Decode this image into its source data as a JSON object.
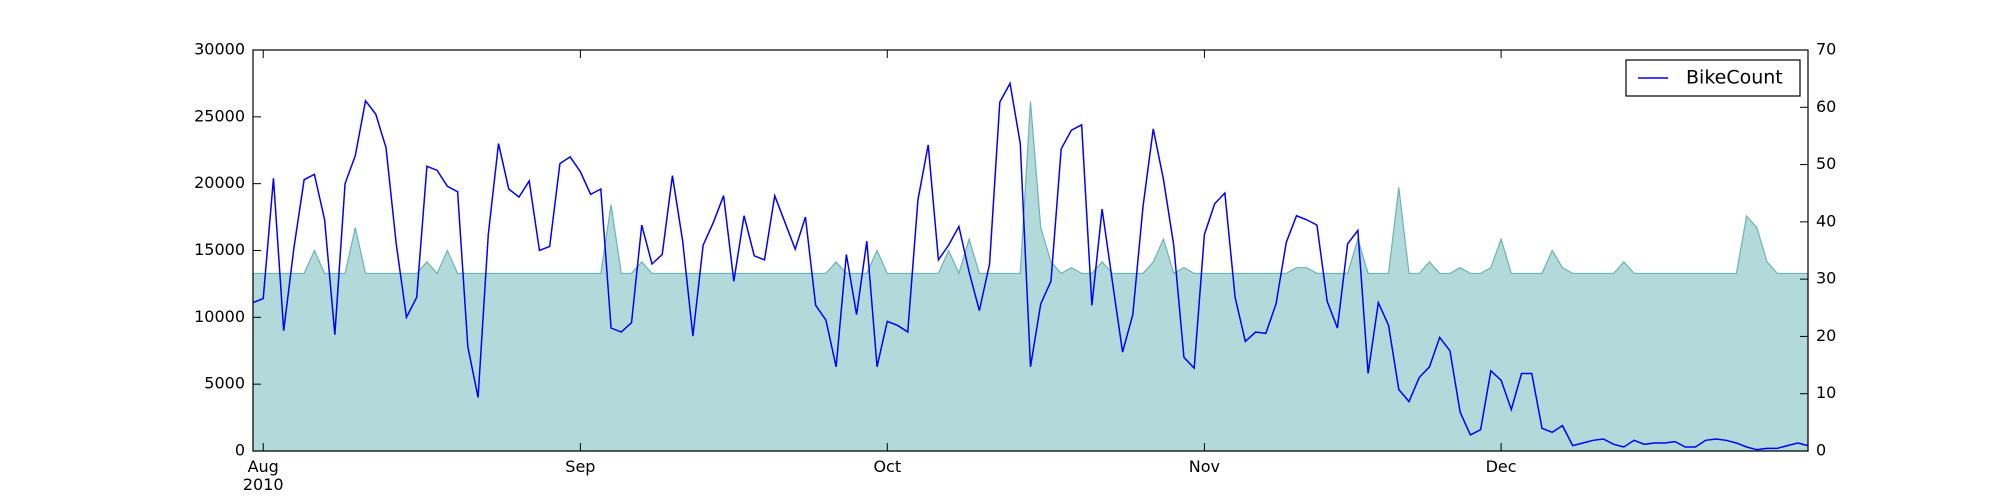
{
  "chart_data": {
    "type": "line_area",
    "x": [
      0,
      1,
      2,
      3,
      4,
      5,
      6,
      7,
      8,
      9,
      10,
      11,
      12,
      13,
      14,
      15,
      16,
      17,
      18,
      19,
      20,
      21,
      22,
      23,
      24,
      25,
      26,
      27,
      28,
      29,
      30,
      31,
      32,
      33,
      34,
      35,
      36,
      37,
      38,
      39,
      40,
      41,
      42,
      43,
      44,
      45,
      46,
      47,
      48,
      49,
      50,
      51,
      52,
      53,
      54,
      55,
      56,
      57,
      58,
      59,
      60,
      61,
      62,
      63,
      64,
      65,
      66,
      67,
      68,
      69,
      70,
      71,
      72,
      73,
      74,
      75,
      76,
      77,
      78,
      79,
      80,
      81,
      82,
      83,
      84,
      85,
      86,
      87,
      88,
      89,
      90,
      91,
      92,
      93,
      94,
      95,
      96,
      97,
      98,
      99,
      100,
      101,
      102,
      103,
      104,
      105,
      106,
      107,
      108,
      109,
      110,
      111,
      112,
      113,
      114,
      115,
      116,
      117,
      118,
      119,
      120,
      121,
      122,
      123,
      124,
      125,
      126,
      127,
      128,
      129,
      130,
      131,
      132,
      133,
      134,
      135,
      136,
      137,
      138,
      139,
      140,
      141,
      142,
      143,
      144,
      145,
      146,
      147,
      148,
      149,
      150,
      151,
      152
    ],
    "series": [
      {
        "name": "BikeCount",
        "color": "#0000ff",
        "kind": "line",
        "axis": "y",
        "values": [
          11100,
          11400,
          20400,
          9000,
          15200,
          20300,
          20700,
          17300,
          8700,
          20000,
          22100,
          26200,
          25200,
          22700,
          15500,
          10000,
          11500,
          21300,
          21000,
          19800,
          19400,
          7800,
          4000,
          16200,
          23000,
          19600,
          19000,
          20200,
          15000,
          15300,
          21500,
          22000,
          20900,
          19200,
          19600,
          9200,
          8900,
          9600,
          16900,
          14000,
          14700,
          20600,
          15700,
          8600,
          15400,
          17100,
          19100,
          12700,
          17600,
          14600,
          14300,
          19100,
          17100,
          15100,
          17500,
          10900,
          9800,
          6300,
          14700,
          10200,
          15700,
          6300,
          9700,
          9400,
          8900,
          18800,
          22900,
          14300,
          15400,
          16800,
          13400,
          10500,
          14000,
          26100,
          27500,
          23000,
          6300,
          11000,
          12700,
          22600,
          24000,
          24400,
          10900,
          18100,
          12700,
          7400,
          10200,
          18300,
          24100,
          20300,
          15400,
          7000,
          6200,
          16200,
          18500,
          19300,
          11500,
          8200,
          8900,
          8800,
          11000,
          15600,
          17600,
          17300,
          16900,
          11200,
          9200,
          15500,
          16500,
          5800,
          11100,
          9400,
          4600,
          3700,
          5500,
          6300,
          8500,
          7500,
          2900,
          1200,
          1600,
          6000,
          5300,
          3100,
          5800,
          5800,
          1700,
          1400,
          1900,
          400,
          600,
          800,
          900,
          500,
          300,
          800,
          500,
          600,
          600,
          700,
          300,
          300,
          800,
          900,
          800,
          600,
          300,
          100,
          200,
          200,
          400,
          600,
          400
        ]
      },
      {
        "color": "#b2dada",
        "edge_color": "#6db3b3",
        "kind": "area",
        "axis": "y2",
        "values": [
          31,
          31,
          31,
          31,
          31,
          31,
          35,
          31,
          31,
          31,
          39,
          31,
          31,
          31,
          31,
          31,
          31,
          33,
          31,
          35,
          31,
          31,
          31,
          31,
          31,
          31,
          31,
          31,
          31,
          31,
          31,
          31,
          31,
          31,
          31,
          43,
          31,
          31,
          33,
          31,
          31,
          31,
          31,
          31,
          31,
          31,
          31,
          31,
          31,
          31,
          31,
          31,
          31,
          31,
          31,
          31,
          31,
          33,
          31,
          31,
          31,
          35,
          31,
          31,
          31,
          31,
          31,
          31,
          35,
          31,
          37,
          31,
          31,
          31,
          31,
          31,
          61,
          39,
          33,
          31,
          32,
          31,
          31,
          33,
          31,
          31,
          31,
          31,
          33,
          37,
          31,
          32,
          31,
          31,
          31,
          31,
          31,
          31,
          31,
          31,
          31,
          31,
          32,
          32,
          31,
          31,
          31,
          31,
          37,
          31,
          31,
          31,
          46,
          31,
          31,
          33,
          31,
          31,
          32,
          31,
          31,
          32,
          37,
          31,
          31,
          31,
          31,
          35,
          32,
          31,
          31,
          31,
          31,
          31,
          33,
          31,
          31,
          31,
          31,
          31,
          31,
          31,
          31,
          31,
          31,
          31,
          41,
          39,
          33,
          31,
          31,
          31,
          31
        ]
      }
    ],
    "xlim": [
      0,
      152
    ],
    "xticks": [
      {
        "value": 1,
        "label": "Aug\n2010"
      },
      {
        "value": 32,
        "label": "Sep"
      },
      {
        "value": 62,
        "label": "Oct"
      },
      {
        "value": 93,
        "label": "Nov"
      },
      {
        "value": 122,
        "label": "Dec"
      }
    ],
    "ylim": [
      0,
      30000
    ],
    "yticks": [
      0,
      5000,
      10000,
      15000,
      20000,
      25000,
      30000
    ],
    "y2lim": [
      0,
      70
    ],
    "y2ticks": [
      0,
      10,
      20,
      30,
      40,
      50,
      60,
      70
    ],
    "legend": "upper right"
  }
}
